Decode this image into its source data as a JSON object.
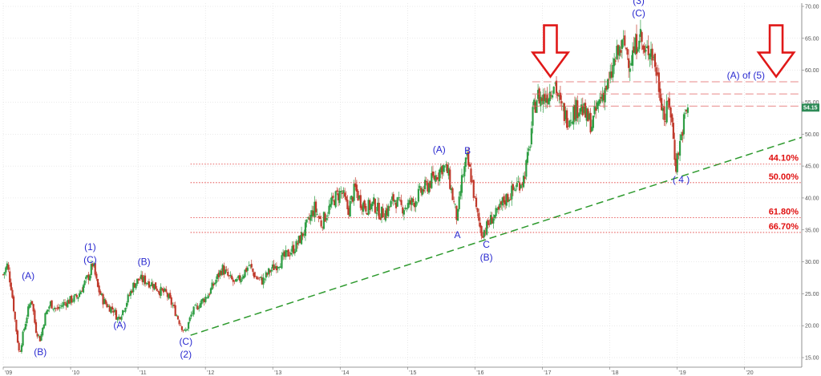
{
  "chart_data": {
    "type": "candlestick",
    "grid": true,
    "x_ticks": [
      "'09",
      "'10",
      "'11",
      "'12",
      "'13",
      "'14",
      "'15",
      "'16",
      "'17",
      "'18",
      "'19",
      "'20"
    ],
    "y_ticks": [
      "15.00",
      "20.00",
      "25.00",
      "30.00",
      "35.00",
      "40.00",
      "45.00",
      "50.00",
      "55.00",
      "60.00",
      "65.00",
      "70.00"
    ],
    "ylim": [
      13.5,
      70.5
    ],
    "xlim": [
      2009.0,
      2020.85
    ],
    "last_price": "54.15",
    "price_path": [
      [
        2009.0,
        28.0
      ],
      [
        2009.06,
        29.5
      ],
      [
        2009.12,
        26.0
      ],
      [
        2009.18,
        20.5
      ],
      [
        2009.24,
        15.5
      ],
      [
        2009.3,
        19.0
      ],
      [
        2009.36,
        22.0
      ],
      [
        2009.42,
        24.5
      ],
      [
        2009.48,
        19.5
      ],
      [
        2009.55,
        17.8
      ],
      [
        2009.62,
        21.5
      ],
      [
        2009.7,
        23.5
      ],
      [
        2009.8,
        22.5
      ],
      [
        2009.9,
        23.5
      ],
      [
        2010.0,
        24.0
      ],
      [
        2010.1,
        24.5
      ],
      [
        2010.2,
        26.5
      ],
      [
        2010.28,
        28.0
      ],
      [
        2010.33,
        29.8
      ],
      [
        2010.4,
        26.0
      ],
      [
        2010.48,
        24.0
      ],
      [
        2010.56,
        23.0
      ],
      [
        2010.64,
        22.5
      ],
      [
        2010.7,
        21.0
      ],
      [
        2010.78,
        22.5
      ],
      [
        2010.86,
        24.5
      ],
      [
        2010.94,
        26.5
      ],
      [
        2011.02,
        27.3
      ],
      [
        2011.12,
        27.0
      ],
      [
        2011.22,
        26.5
      ],
      [
        2011.32,
        25.5
      ],
      [
        2011.42,
        25.0
      ],
      [
        2011.52,
        23.0
      ],
      [
        2011.62,
        20.5
      ],
      [
        2011.7,
        18.8
      ],
      [
        2011.8,
        22.0
      ],
      [
        2011.92,
        23.5
      ],
      [
        2012.05,
        25.0
      ],
      [
        2012.15,
        27.0
      ],
      [
        2012.25,
        29.0
      ],
      [
        2012.35,
        27.5
      ],
      [
        2012.45,
        26.5
      ],
      [
        2012.55,
        28.0
      ],
      [
        2012.65,
        29.5
      ],
      [
        2012.75,
        27.5
      ],
      [
        2012.85,
        27.0
      ],
      [
        2012.95,
        28.5
      ],
      [
        2013.05,
        29.5
      ],
      [
        2013.2,
        31.0
      ],
      [
        2013.35,
        32.5
      ],
      [
        2013.5,
        35.5
      ],
      [
        2013.62,
        38.5
      ],
      [
        2013.72,
        36.0
      ],
      [
        2013.82,
        38.0
      ],
      [
        2013.92,
        40.0
      ],
      [
        2014.02,
        41.0
      ],
      [
        2014.12,
        38.0
      ],
      [
        2014.22,
        41.5
      ],
      [
        2014.3,
        39.5
      ],
      [
        2014.4,
        38.5
      ],
      [
        2014.5,
        39.0
      ],
      [
        2014.6,
        37.5
      ],
      [
        2014.7,
        38.0
      ],
      [
        2014.8,
        40.0
      ],
      [
        2014.9,
        38.5
      ],
      [
        2015.0,
        38.8
      ],
      [
        2015.1,
        39.5
      ],
      [
        2015.2,
        41.0
      ],
      [
        2015.3,
        42.0
      ],
      [
        2015.42,
        43.5
      ],
      [
        2015.52,
        45.0
      ],
      [
        2015.6,
        44.0
      ],
      [
        2015.68,
        39.5
      ],
      [
        2015.74,
        36.5
      ],
      [
        2015.8,
        42.5
      ],
      [
        2015.88,
        46.0
      ],
      [
        2015.95,
        43.0
      ],
      [
        2016.02,
        38.0
      ],
      [
        2016.1,
        34.5
      ],
      [
        2016.18,
        35.5
      ],
      [
        2016.26,
        37.0
      ],
      [
        2016.34,
        37.5
      ],
      [
        2016.42,
        39.5
      ],
      [
        2016.52,
        40.5
      ],
      [
        2016.62,
        42.0
      ],
      [
        2016.72,
        43.0
      ],
      [
        2016.8,
        47.0
      ],
      [
        2016.86,
        53.0
      ],
      [
        2016.92,
        56.0
      ],
      [
        2017.0,
        55.5
      ],
      [
        2017.1,
        56.5
      ],
      [
        2017.18,
        58.5
      ],
      [
        2017.26,
        54.5
      ],
      [
        2017.36,
        52.5
      ],
      [
        2017.46,
        53.5
      ],
      [
        2017.56,
        54.5
      ],
      [
        2017.66,
        52.5
      ],
      [
        2017.74,
        51.5
      ],
      [
        2017.82,
        54.5
      ],
      [
        2017.92,
        57.0
      ],
      [
        2018.0,
        58.0
      ],
      [
        2018.06,
        61.0
      ],
      [
        2018.14,
        63.0
      ],
      [
        2018.22,
        64.0
      ],
      [
        2018.3,
        61.5
      ],
      [
        2018.38,
        63.5
      ],
      [
        2018.44,
        66.2
      ],
      [
        2018.52,
        62.0
      ],
      [
        2018.6,
        64.0
      ],
      [
        2018.68,
        60.5
      ],
      [
        2018.76,
        56.0
      ],
      [
        2018.82,
        52.0
      ],
      [
        2018.88,
        55.5
      ],
      [
        2018.93,
        51.0
      ],
      [
        2018.98,
        45.0
      ],
      [
        2019.04,
        48.5
      ],
      [
        2019.1,
        52.0
      ],
      [
        2019.16,
        54.15
      ]
    ],
    "wave_labels": [
      {
        "text": "(A)",
        "x": 2009.37,
        "y": 27.3
      },
      {
        "text": "(B)",
        "x": 2009.55,
        "y": 15.4
      },
      {
        "text": "(1)",
        "x": 2010.29,
        "y": 31.8
      },
      {
        "text": "(C)",
        "x": 2010.29,
        "y": 29.8
      },
      {
        "text": "(A)",
        "x": 2010.73,
        "y": 19.6
      },
      {
        "text": "(B)",
        "x": 2011.09,
        "y": 29.5
      },
      {
        "text": "(C)",
        "x": 2011.71,
        "y": 17.0
      },
      {
        "text": "(2)",
        "x": 2011.71,
        "y": 15.0
      },
      {
        "text": "(A)",
        "x": 2015.47,
        "y": 47.1
      },
      {
        "text": "B",
        "x": 2015.89,
        "y": 46.9
      },
      {
        "text": "A",
        "x": 2015.74,
        "y": 33.7
      },
      {
        "text": "C",
        "x": 2016.17,
        "y": 32.2
      },
      {
        "text": "(B)",
        "x": 2016.17,
        "y": 30.2
      },
      {
        "text": "(3)",
        "x": 2018.43,
        "y": 70.4
      },
      {
        "text": "(C)",
        "x": 2018.43,
        "y": 68.4
      },
      {
        "text": "( 4 )",
        "x": 2019.06,
        "y": 42.4
      }
    ],
    "fib_levels": [
      {
        "label": "44.10%",
        "y": 45.3
      },
      {
        "label": "50.00%",
        "y": 42.4
      },
      {
        "label": "61.80%",
        "y": 36.9
      },
      {
        "label": "66.70%",
        "y": 34.6
      }
    ],
    "resistance_levels": [
      58.2,
      56.3,
      54.4
    ],
    "target_label": "(A) of (5)",
    "trendline": {
      "from": [
        2011.78,
        18.5
      ],
      "to": [
        2020.85,
        49.5
      ]
    },
    "arrows": [
      {
        "x": 2017.12,
        "y_tip": 59.0
      },
      {
        "x": 2020.47,
        "y_tip": 59.0
      }
    ]
  },
  "colors": {
    "up": "#2f9e44",
    "down": "#c0392b",
    "trendline": "#2e9a2e",
    "fib": "#e03030",
    "resistance": "#e06060",
    "wave": "#2a2ad0",
    "arrow": "#e01818",
    "last_badge": "#2e8b57"
  }
}
